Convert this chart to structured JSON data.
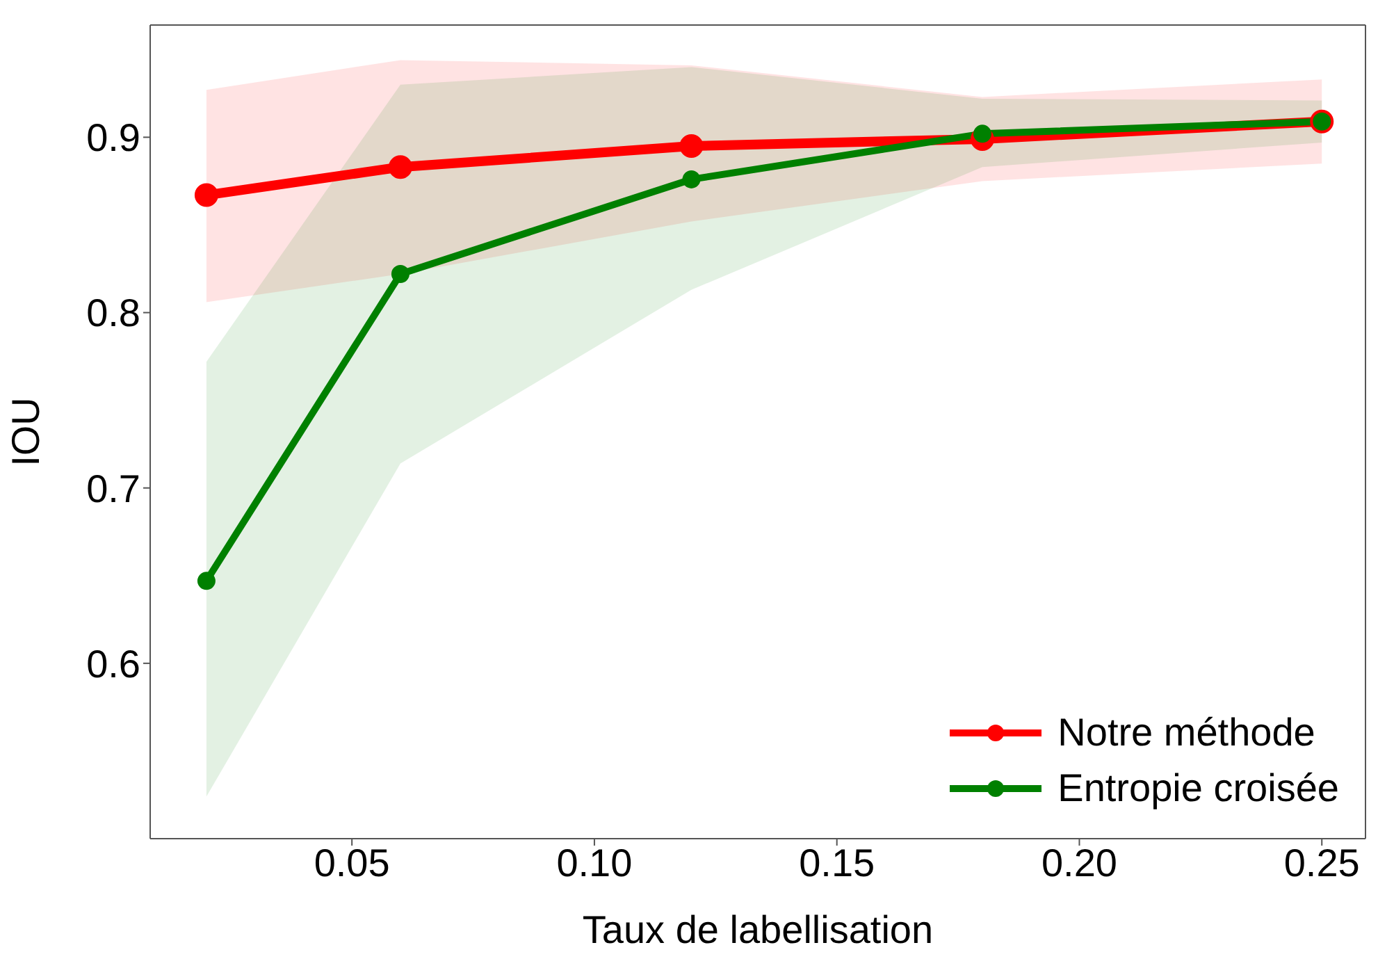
{
  "chart_data": {
    "type": "line",
    "xlabel": "Taux de labellisation",
    "ylabel": "IOU",
    "x": [
      0.02,
      0.06,
      0.12,
      0.18,
      0.25
    ],
    "xlim": [
      0.0084,
      0.259
    ],
    "xticks": [
      {
        "value": 0.05,
        "label": "0.05"
      },
      {
        "value": 0.1,
        "label": "0.10"
      },
      {
        "value": 0.15,
        "label": "0.15"
      },
      {
        "value": 0.2,
        "label": "0.20"
      },
      {
        "value": 0.25,
        "label": "0.25"
      }
    ],
    "ylim": [
      0.5,
      0.964
    ],
    "yticks": [
      0.6,
      0.7,
      0.8,
      0.9
    ],
    "grid": false,
    "legend": "bottom right",
    "marker": "circle",
    "line_style": "solid",
    "series": [
      {
        "name": "Notre méthode",
        "color": "#ff0000",
        "values": [
          0.867,
          0.883,
          0.895,
          0.899,
          0.909
        ],
        "lower": [
          0.806,
          0.822,
          0.852,
          0.875,
          0.885
        ],
        "upper": [
          0.927,
          0.944,
          0.941,
          0.923,
          0.933
        ]
      },
      {
        "name": "Entropie croisée",
        "color": "#008000",
        "values": [
          0.647,
          0.822,
          0.876,
          0.902,
          0.909
        ],
        "lower": [
          0.524,
          0.714,
          0.813,
          0.883,
          0.897
        ],
        "upper": [
          0.772,
          0.93,
          0.94,
          0.922,
          0.921
        ]
      }
    ]
  }
}
